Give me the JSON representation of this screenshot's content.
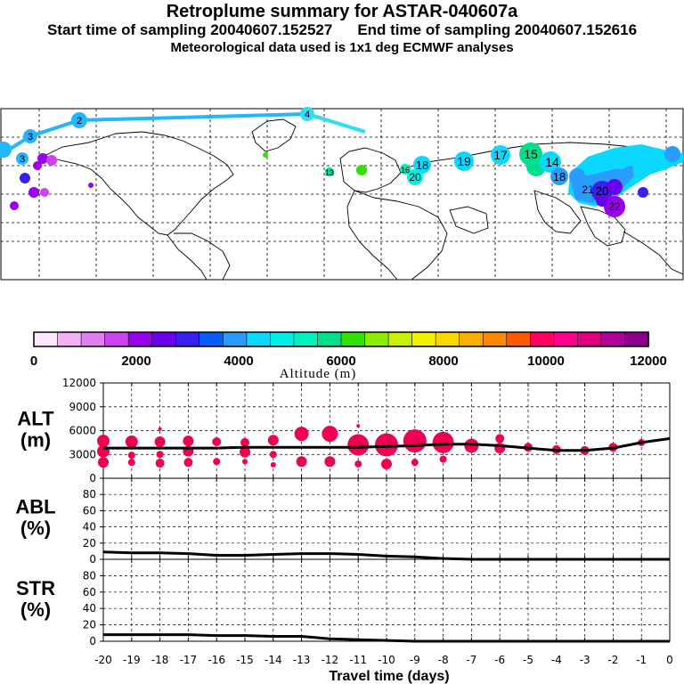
{
  "header": {
    "title": "Retroplume summary for ASTAR-040607a",
    "start_label": "Start time of sampling 20040607.152527",
    "end_label": "End time of sampling 20040607.152616",
    "met_label": "Meteorological data used is 1x1 deg ECMWF analyses"
  },
  "map": {
    "cluster_labels": [
      "2",
      "3",
      "4",
      "3",
      "13",
      "16",
      "18",
      "20",
      "19",
      "17",
      "15",
      "14",
      "18",
      "20",
      "22",
      "21"
    ]
  },
  "colorbar": {
    "title": "Altitude (m)",
    "tick_labels": [
      "0",
      "2000",
      "4000",
      "6000",
      "8000",
      "10000",
      "12000"
    ],
    "colors": [
      "#ffe6ff",
      "#f0b0f5",
      "#e080f0",
      "#cc44ee",
      "#9900ee",
      "#6a00ee",
      "#3a20f0",
      "#0a5cff",
      "#2a9cff",
      "#0ad8ff",
      "#00f0e8",
      "#00f0c0",
      "#00e08c",
      "#33e000",
      "#8ced00",
      "#c8f000",
      "#f2f000",
      "#f8d800",
      "#fcae00",
      "#ff8800",
      "#ff5a00",
      "#ff0060",
      "#ff0090",
      "#e0007f",
      "#b0009a",
      "#8b008b"
    ]
  },
  "chart_data": [
    {
      "type": "line",
      "panel_label": "ALT\n(m)",
      "label_line1": "ALT",
      "label_line2": "(m)",
      "ylim": [
        0,
        12000
      ],
      "yticks": [
        0,
        3000,
        6000,
        9000,
        12000
      ],
      "ytick_labels": [
        "0",
        "3000",
        "6000",
        "9000",
        "12000"
      ],
      "mean_line": {
        "x": [
          -20,
          -19,
          -18,
          -17,
          -16,
          -15,
          -14,
          -13,
          -12,
          -11,
          -10,
          -9,
          -8,
          -7,
          -6,
          -5,
          -4,
          -3,
          -2,
          -1,
          0
        ],
        "y": [
          3800,
          3800,
          3800,
          3800,
          3800,
          3900,
          3900,
          3900,
          3900,
          3900,
          4000,
          4100,
          4300,
          4300,
          4100,
          3800,
          3500,
          3500,
          3800,
          4500,
          5000
        ]
      },
      "clusters": [
        {
          "x": -20,
          "y": 4700,
          "r": 7
        },
        {
          "x": -20,
          "y": 3400,
          "r": 7
        },
        {
          "x": -20,
          "y": 2000,
          "r": 6
        },
        {
          "x": -19,
          "y": 4600,
          "r": 7
        },
        {
          "x": -19,
          "y": 2900,
          "r": 4
        },
        {
          "x": -19,
          "y": 2000,
          "r": 4
        },
        {
          "x": -18,
          "y": 4600,
          "r": 6
        },
        {
          "x": -18,
          "y": 6200,
          "r": 2
        },
        {
          "x": -18,
          "y": 3000,
          "r": 4
        },
        {
          "x": -18,
          "y": 1900,
          "r": 5
        },
        {
          "x": -17,
          "y": 4700,
          "r": 6
        },
        {
          "x": -17,
          "y": 3400,
          "r": 6
        },
        {
          "x": -17,
          "y": 2000,
          "r": 5
        },
        {
          "x": -16,
          "y": 4600,
          "r": 5
        },
        {
          "x": -16,
          "y": 2100,
          "r": 4
        },
        {
          "x": -15,
          "y": 4500,
          "r": 5
        },
        {
          "x": -15,
          "y": 3300,
          "r": 6
        },
        {
          "x": -15,
          "y": 2100,
          "r": 3
        },
        {
          "x": -14,
          "y": 4800,
          "r": 6
        },
        {
          "x": -14,
          "y": 3000,
          "r": 4
        },
        {
          "x": -14,
          "y": 1700,
          "r": 3
        },
        {
          "x": -13,
          "y": 5600,
          "r": 8
        },
        {
          "x": -13,
          "y": 2100,
          "r": 6
        },
        {
          "x": -12,
          "y": 5600,
          "r": 9
        },
        {
          "x": -12,
          "y": 2100,
          "r": 6
        },
        {
          "x": -11,
          "y": 4200,
          "r": 12
        },
        {
          "x": -11,
          "y": 6600,
          "r": 2
        },
        {
          "x": -11,
          "y": 1800,
          "r": 4
        },
        {
          "x": -10,
          "y": 4200,
          "r": 13
        },
        {
          "x": -10,
          "y": 1800,
          "r": 6
        },
        {
          "x": -9,
          "y": 4700,
          "r": 13
        },
        {
          "x": -9,
          "y": 2000,
          "r": 4
        },
        {
          "x": -8,
          "y": 4500,
          "r": 12
        },
        {
          "x": -8,
          "y": 2400,
          "r": 4
        },
        {
          "x": -7,
          "y": 4100,
          "r": 8
        },
        {
          "x": -6,
          "y": 5000,
          "r": 5
        },
        {
          "x": -6,
          "y": 3800,
          "r": 6
        },
        {
          "x": -5,
          "y": 3900,
          "r": 5
        },
        {
          "x": -4,
          "y": 3600,
          "r": 5
        },
        {
          "x": -3,
          "y": 3500,
          "r": 5
        },
        {
          "x": -2,
          "y": 3900,
          "r": 5
        },
        {
          "x": -1,
          "y": 4500,
          "r": 4
        }
      ]
    },
    {
      "type": "line",
      "panel_label": "ABL\n(%)",
      "label_line1": "ABL",
      "label_line2": "(%)",
      "ylim": [
        0,
        100
      ],
      "yticks": [
        0,
        20,
        40,
        60,
        80
      ],
      "ytick_labels": [
        "0",
        "20",
        "40",
        "60",
        "80"
      ],
      "series": {
        "x": [
          -20,
          -19,
          -18,
          -17,
          -16,
          -15,
          -14,
          -13,
          -12,
          -11,
          -10,
          -9,
          -8,
          -7,
          -6,
          -5,
          -4,
          -3,
          -2,
          -1,
          0
        ],
        "y": [
          9,
          8,
          8,
          7,
          5,
          5,
          6,
          7,
          7,
          6,
          4,
          3,
          1,
          0,
          0,
          0,
          0,
          0,
          0,
          0,
          0
        ]
      }
    },
    {
      "type": "line",
      "panel_label": "STR\n(%)",
      "label_line1": "STR",
      "label_line2": "(%)",
      "ylim": [
        0,
        100
      ],
      "yticks": [
        0,
        20,
        40,
        60,
        80
      ],
      "ytick_labels": [
        "0",
        "20",
        "40",
        "60",
        "80"
      ],
      "series": {
        "x": [
          -20,
          -19,
          -18,
          -17,
          -16,
          -15,
          -14,
          -13,
          -12,
          -11,
          -10,
          -9,
          -8,
          -7,
          -6,
          -5,
          -4,
          -3,
          -2,
          -1,
          0
        ],
        "y": [
          8,
          8,
          8,
          8,
          7,
          7,
          6,
          6,
          3,
          2,
          1,
          0,
          0,
          0,
          0,
          0,
          0,
          0,
          0,
          0,
          0
        ]
      }
    }
  ],
  "x_axis": {
    "xlabel": "Travel time (days)",
    "xlim": [
      -20,
      0
    ],
    "ticks": [
      -20,
      -19,
      -18,
      -17,
      -16,
      -15,
      -14,
      -13,
      -12,
      -11,
      -10,
      -9,
      -8,
      -7,
      -6,
      -5,
      -4,
      -3,
      -2,
      -1,
      0
    ],
    "tick_labels": [
      "-20",
      "-19",
      "-18",
      "-17",
      "-16",
      "-15",
      "-14",
      "-13",
      "-12",
      "-11",
      "-10",
      "-9",
      "-8",
      "-7",
      "-6",
      "-5",
      "-4",
      "-3",
      "-2",
      "-1",
      "0"
    ]
  },
  "style": {
    "cluster_color": "#ee0055",
    "line_color": "#000000",
    "plume_color": "#22b6ff",
    "plume_color_light": "#33dcf5"
  }
}
